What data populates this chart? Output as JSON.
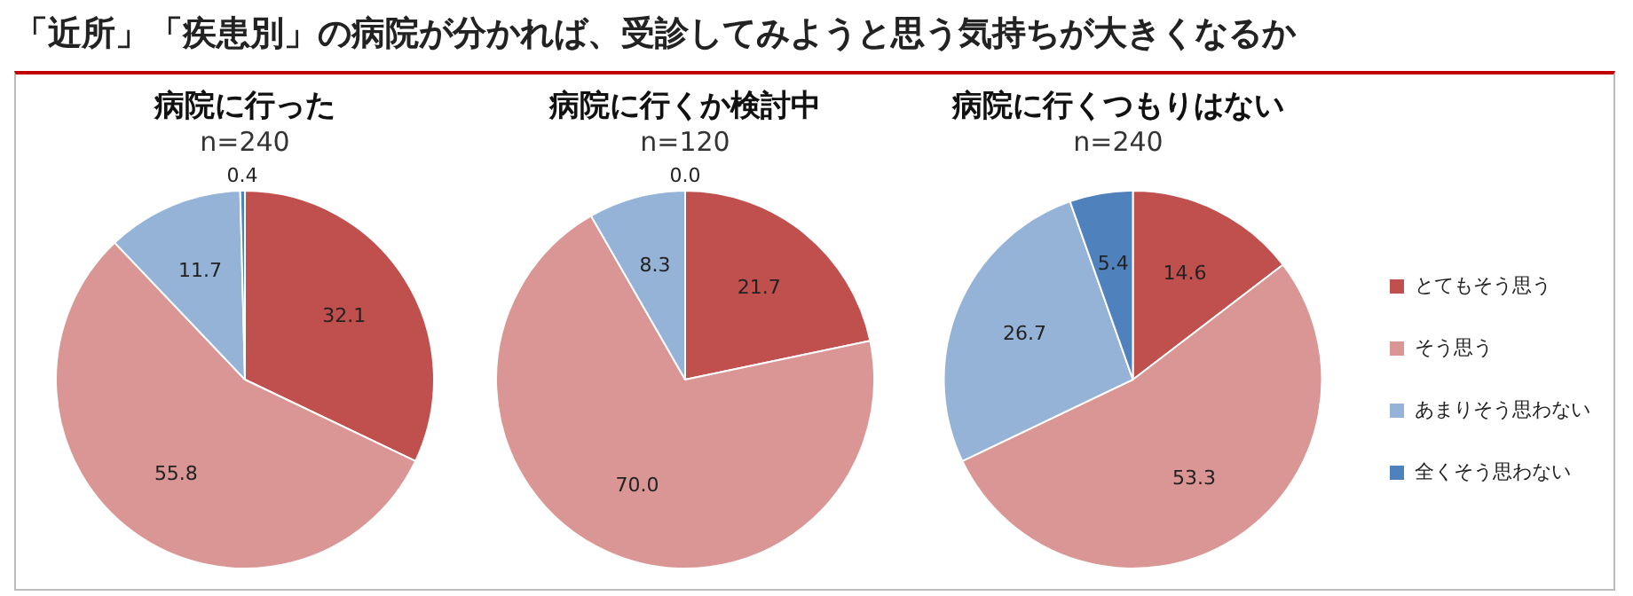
{
  "chart_data": [
    {
      "type": "other",
      "title": "「近所」「疾患別」の病院が分かれば、受診してみようと思う気持ちが大きくなるか"
    },
    {
      "type": "pie",
      "title": "病院に行った",
      "subtitle": "n=240",
      "categories": [
        null,
        null,
        null,
        null
      ],
      "values": [
        32.1,
        55.8,
        11.7,
        0.4
      ],
      "value_labels": [
        "32.1",
        "55.8",
        "11.7",
        "0.4"
      ],
      "colors": [
        "#c0504d",
        "#d99694",
        "#95b3d7",
        "#4f81bd"
      ]
    },
    {
      "type": "pie",
      "title": "病院に行くか検討中",
      "subtitle": "n=120",
      "categories": [
        null,
        null,
        null,
        null
      ],
      "values": [
        21.7,
        70.0,
        8.3,
        0.0
      ],
      "value_labels": [
        "21.7",
        "70.0",
        "8.3",
        "0.0"
      ],
      "colors": [
        "#c0504d",
        "#d99694",
        "#95b3d7",
        "#4f81bd"
      ]
    },
    {
      "type": "pie",
      "title": "病院に行くつもりはない",
      "subtitle": "n=240",
      "categories": [
        "とてもそう思う",
        "そう思う",
        "あまりそう思わない",
        "全くそう思わない"
      ],
      "values": [
        14.6,
        53.3,
        26.7,
        5.4
      ],
      "value_labels": [
        "14.6",
        "53.3",
        "26.7",
        "5.4"
      ],
      "colors": [
        "#c0504d",
        "#d99694",
        "#95b3d7",
        "#4f81bd"
      ],
      "legend": "right"
    }
  ]
}
